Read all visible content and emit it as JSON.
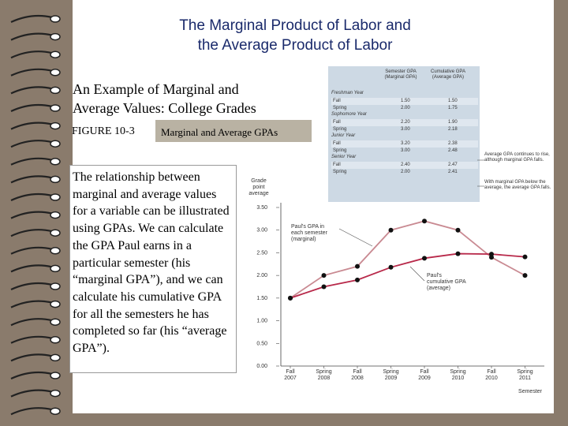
{
  "slide": {
    "title_line1": "The Marginal Product of Labor and",
    "title_line2": "the Average Product of Labor",
    "subtitle_line1": "An Example of Marginal and",
    "subtitle_line2": "Average Values: College Grades",
    "figure_label": "FIGURE 10-3",
    "figure_title": "Marginal and Average GPAs",
    "body_text": "The relationship between marginal and average values for a variable can be illustrated using GPAs. We can calculate the GPA Paul earns in a particular semester (his “marginal GPA”), and we can calculate his cumulative GPA for all the semesters he has completed so far (his “average GPA”)."
  },
  "table": {
    "col1_header": "Semester GPA (Marginal GPA)",
    "col2_header": "Cumulative GPA (Average GPA)",
    "sections": [
      {
        "name": "Freshman Year",
        "rows": [
          [
            "Fall",
            "1.50",
            "1.50"
          ],
          [
            "Spring",
            "2.00",
            "1.75"
          ]
        ]
      },
      {
        "name": "Sophomore Year",
        "rows": [
          [
            "Fall",
            "2.20",
            "1.90"
          ],
          [
            "Spring",
            "3.00",
            "2.18"
          ]
        ]
      },
      {
        "name": "Junior Year",
        "rows": [
          [
            "Fall",
            "3.20",
            "2.38"
          ],
          [
            "Spring",
            "3.00",
            "2.48"
          ]
        ]
      },
      {
        "name": "Senior Year",
        "rows": [
          [
            "Fall",
            "2.40",
            "2.47"
          ],
          [
            "Spring",
            "2.00",
            "2.41"
          ]
        ]
      }
    ]
  },
  "notes": {
    "falls": "Average GPA continues to rise, although marginal GPA falls.",
    "below": "With marginal GPA below the average, the average GPA falls."
  },
  "annotations": {
    "marginal": "Paul's GPA in each semester (marginal)",
    "average": "Paul's cumulative GPA (average)"
  },
  "chart_data": {
    "type": "line",
    "ylabel": "Grade point average",
    "xlabel": "Semester",
    "categories": [
      "Fall 2007",
      "Spring 2008",
      "Fall 2008",
      "Spring 2009",
      "Fall 2009",
      "Spring 2010",
      "Fall 2010",
      "Spring 2011"
    ],
    "y_ticks": [
      "0.00",
      "0.50",
      "1.00",
      "1.50",
      "2.00",
      "2.50",
      "3.00",
      "3.50"
    ],
    "ylim": [
      0,
      3.5
    ],
    "series": [
      {
        "values": [
          1.5,
          2.0,
          2.2,
          3.0,
          3.2,
          3.0,
          2.4,
          2.0
        ],
        "color": "#c98a92"
      },
      {
        "values": [
          1.5,
          1.75,
          1.9,
          2.18,
          2.38,
          2.48,
          2.47,
          2.41
        ],
        "color": "#b8294a"
      }
    ],
    "grid": false
  },
  "colors": {
    "background": "#8a7b6c",
    "title": "#1a2a6b",
    "figure_box": "#b9b2a3",
    "table_bg": "#cdd9e4",
    "marginal_line": "#c98a92",
    "average_line": "#b8294a"
  }
}
